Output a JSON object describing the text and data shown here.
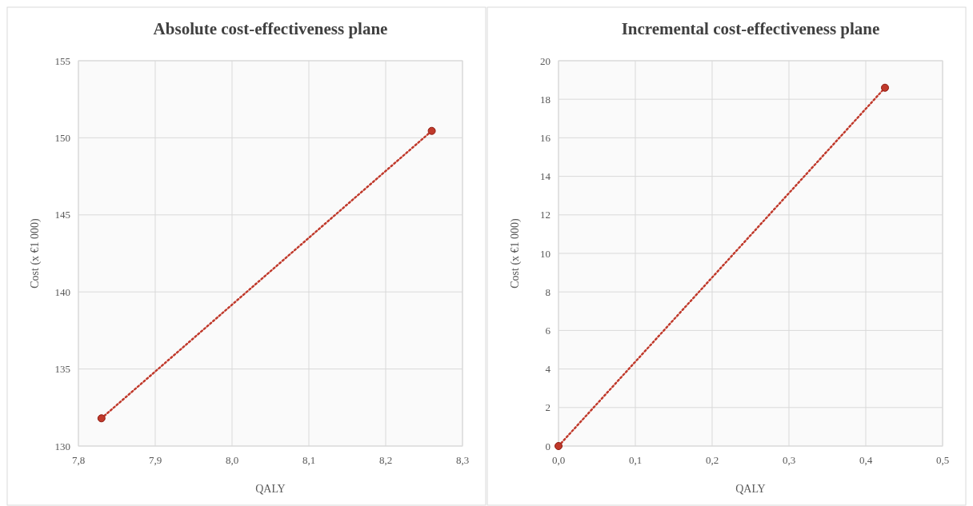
{
  "chart_data": [
    {
      "type": "line",
      "title": "Absolute cost-effectiveness plane",
      "xlabel": "QALY",
      "ylabel": "Cost (x €1 000)",
      "x": [
        7.83,
        8.26
      ],
      "series": [
        {
          "color": "#c0392b",
          "values": [
            131.8,
            150.45
          ]
        }
      ],
      "xlim": [
        7.8,
        8.3
      ],
      "xticks": [
        {
          "value": 7.8,
          "label": "7,8"
        },
        {
          "value": 7.9,
          "label": "7,9"
        },
        {
          "value": 8.0,
          "label": "8,0"
        },
        {
          "value": 8.1,
          "label": "8,1"
        },
        {
          "value": 8.2,
          "label": "8,2"
        },
        {
          "value": 8.3,
          "label": "8,3"
        }
      ],
      "ylim": [
        130,
        155
      ],
      "yticks": [
        130,
        135,
        140,
        145,
        150,
        155
      ],
      "grid": true,
      "marker": "circle",
      "line_style": "dotted"
    },
    {
      "type": "line",
      "title": "Incremental cost-effectiveness plane",
      "xlabel": "QALY",
      "ylabel": "Cost (x €1 000)",
      "x": [
        0,
        0.425
      ],
      "series": [
        {
          "color": "#c0392b",
          "values": [
            0,
            18.6
          ]
        }
      ],
      "xlim": [
        0,
        0.5
      ],
      "xticks": [
        {
          "value": 0,
          "label": "0,0"
        },
        {
          "value": 0.1,
          "label": "0,1"
        },
        {
          "value": 0.2,
          "label": "0,2"
        },
        {
          "value": 0.3,
          "label": "0,3"
        },
        {
          "value": 0.4,
          "label": "0,4"
        },
        {
          "value": 0.5,
          "label": "0,5"
        }
      ],
      "ylim": [
        0,
        20
      ],
      "yticks": [
        0,
        2,
        4,
        6,
        8,
        10,
        12,
        14,
        16,
        18,
        20
      ],
      "grid": true,
      "marker": "circle",
      "line_style": "dotted"
    }
  ]
}
